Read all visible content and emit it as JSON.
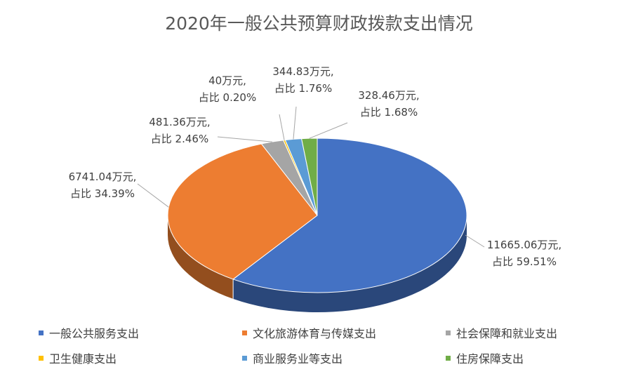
{
  "chart_data": {
    "type": "pie",
    "title": "2020年一般公共预算财政拨款支出情况",
    "categories": [
      "一般公共服务支出",
      "文化旅游体育与传媒支出",
      "社会保障和就业支出",
      "卫生健康支出",
      "商业服务业等支出",
      "住房保障支出"
    ],
    "values": [
      11665.06,
      6741.04,
      481.36,
      40,
      344.83,
      328.46
    ],
    "percents": [
      59.51,
      34.39,
      2.46,
      0.2,
      1.76,
      1.68
    ],
    "colors": [
      "#4472C4",
      "#ED7D31",
      "#A5A5A5",
      "#FFC000",
      "#5B9BD5",
      "#70AD47"
    ],
    "labels": [
      [
        "11665.06万元,",
        "占比 59.51%"
      ],
      [
        "6741.04万元,",
        "占比 34.39%"
      ],
      [
        "481.36万元,",
        "占比 2.46%"
      ],
      [
        "40万元,",
        "占比 0.20%"
      ],
      [
        "344.83万元,",
        "占比 1.76%"
      ],
      [
        "328.46万元,",
        "占比 1.68%"
      ]
    ],
    "legend_position": "bottom",
    "style": "3d"
  }
}
